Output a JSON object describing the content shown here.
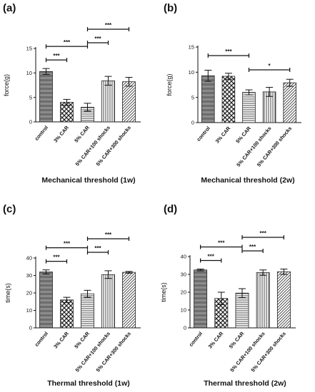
{
  "chart_data": [
    {
      "panel": "(a)",
      "type": "bar",
      "title": "Mechanical threshold (1w)",
      "ylabel": "force(g)",
      "categories": [
        "control",
        "3% CAR",
        "5% CAR",
        "5% CAR+100 shocks",
        "5% CAR+300 shocks"
      ],
      "values": [
        10.3,
        4.0,
        3.0,
        8.4,
        8.2
      ],
      "errors": [
        0.6,
        0.6,
        0.8,
        0.9,
        0.9
      ],
      "ylim": [
        0,
        15
      ],
      "yticks": [
        0,
        5,
        10,
        15
      ],
      "significance": [
        {
          "from": 0,
          "to": 1,
          "label": "***"
        },
        {
          "from": 0,
          "to": 2,
          "label": "***"
        },
        {
          "from": 2,
          "to": 3,
          "label": "***"
        },
        {
          "from": 2,
          "to": 4,
          "label": "***"
        }
      ]
    },
    {
      "panel": "(b)",
      "type": "bar",
      "title": "Mechanical threshold (2w)",
      "ylabel": "force(g)",
      "categories": [
        "control",
        "3% CAR",
        "5% CAR",
        "5% CAR+100 shocks",
        "5% CAR+300 shocks"
      ],
      "values": [
        9.3,
        9.2,
        6.0,
        6.1,
        7.9
      ],
      "errors": [
        1.1,
        0.6,
        0.5,
        0.9,
        0.7
      ],
      "ylim": [
        0,
        15
      ],
      "yticks": [
        0,
        5,
        10,
        15
      ],
      "significance": [
        {
          "from": 0,
          "to": 2,
          "label": "***"
        },
        {
          "from": 2,
          "to": 4,
          "label": "*"
        }
      ]
    },
    {
      "panel": "(c)",
      "type": "bar",
      "title": "Thermal threshold (1w)",
      "ylabel": "time(s)",
      "categories": [
        "control",
        "3% CAR",
        "5% CAR",
        "5% CAR+100 shocks",
        "5% CAR+300 shocks"
      ],
      "values": [
        32.0,
        16.0,
        19.5,
        30.5,
        31.8
      ],
      "errors": [
        1.2,
        1.5,
        2.0,
        2.2,
        0.5
      ],
      "ylim": [
        0,
        40
      ],
      "yticks": [
        0,
        10,
        20,
        30,
        40
      ],
      "significance": [
        {
          "from": 0,
          "to": 1,
          "label": "***"
        },
        {
          "from": 0,
          "to": 2,
          "label": "***"
        },
        {
          "from": 2,
          "to": 3,
          "label": "***"
        },
        {
          "from": 2,
          "to": 4,
          "label": "***"
        }
      ]
    },
    {
      "panel": "(d)",
      "type": "bar",
      "title": "Thermal threshold (2w)",
      "ylabel": "time(s)",
      "categories": [
        "control",
        "3% CAR",
        "5% CAR",
        "5% CAR+100 shocks",
        "5% CAR+300 shocks"
      ],
      "values": [
        32.5,
        16.5,
        19.5,
        31.0,
        31.5
      ],
      "errors": [
        0.5,
        3.5,
        2.5,
        1.5,
        1.5
      ],
      "ylim": [
        0,
        40
      ],
      "yticks": [
        0,
        10,
        20,
        30,
        40
      ],
      "significance": [
        {
          "from": 0,
          "to": 1,
          "label": "***"
        },
        {
          "from": 0,
          "to": 2,
          "label": "***"
        },
        {
          "from": 2,
          "to": 3,
          "label": "***"
        },
        {
          "from": 2,
          "to": 4,
          "label": "***"
        }
      ]
    }
  ]
}
